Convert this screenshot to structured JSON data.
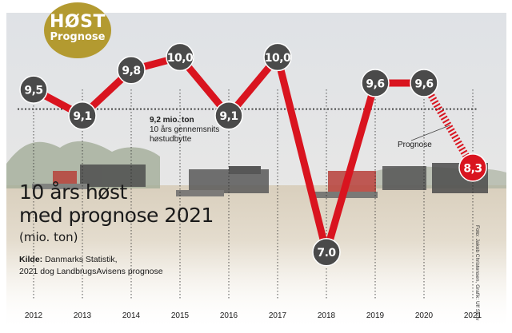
{
  "badge": {
    "line1": "HØST",
    "line2": "Prognose"
  },
  "title": {
    "line1": "10 års høst",
    "line2": "med prognose 2021"
  },
  "unit": "(mio. ton)",
  "source": {
    "label": "Kilde:",
    "line1": "Danmarks Statistik,",
    "line2": "2021 dog LandbrugsAvisens prognose"
  },
  "average_note": {
    "value": "9,2 mio. ton",
    "line2": "10 års gennemsnits",
    "line3": "høstudbytte"
  },
  "forecast_label": "Prognose",
  "photo_credit": "Foto: Jakob Christensen, Grafik: Ulf Skov",
  "colors": {
    "line": "#d9141f",
    "marker": "#4a4a4a",
    "badge": "#b39a30"
  },
  "chart_data": {
    "type": "line",
    "title": "10 års høst med prognose 2021",
    "ylabel": "mio. ton",
    "xlabel": "",
    "categories": [
      "2012",
      "2013",
      "2014",
      "2015",
      "2016",
      "2017",
      "2018",
      "2019",
      "2020",
      "2021"
    ],
    "values": [
      9.5,
      9.1,
      9.8,
      10.0,
      9.1,
      10.0,
      7.0,
      9.6,
      9.6,
      8.3
    ],
    "labels": [
      "9,5",
      "9,1",
      "9,8",
      "10,0",
      "9,1",
      "10,0",
      "7.0",
      "9,6",
      "9,6",
      "8,3"
    ],
    "forecast_index": 9,
    "average": 9.2,
    "ylim": [
      6.8,
      10.3
    ]
  }
}
